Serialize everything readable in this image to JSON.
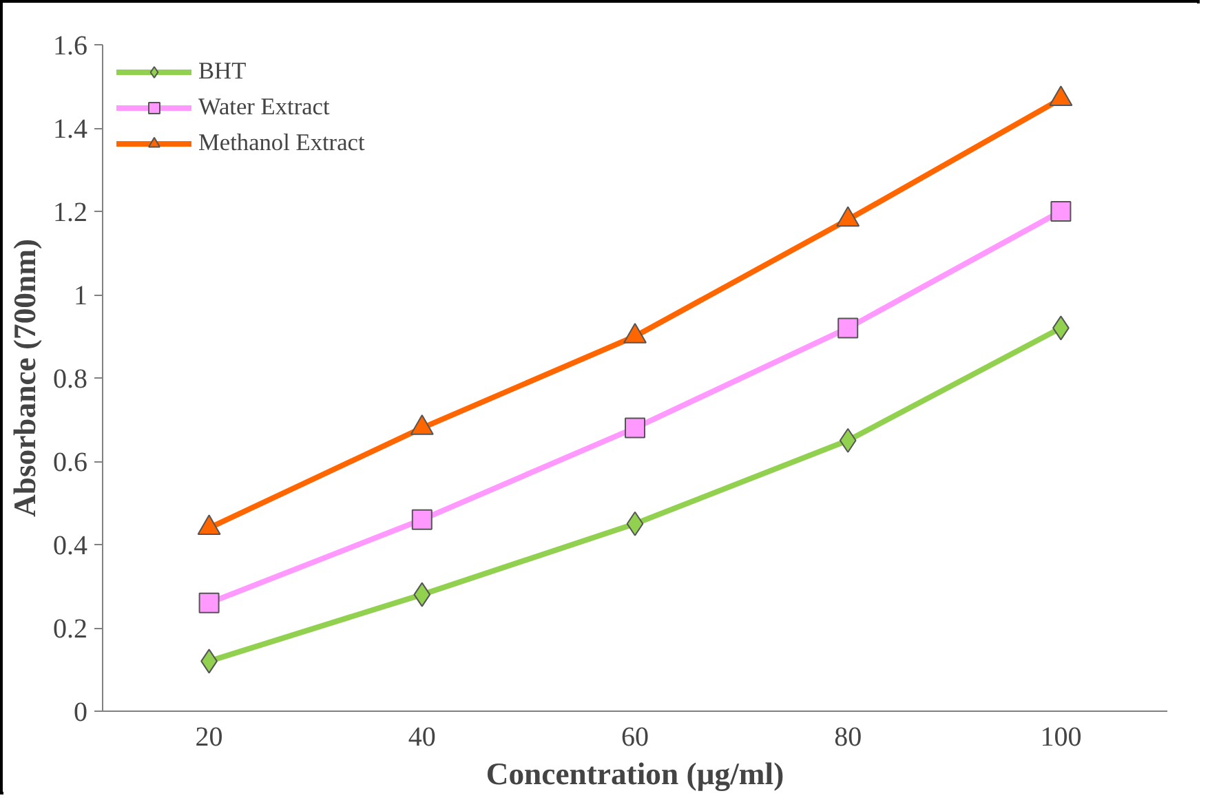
{
  "chart_data": {
    "type": "line",
    "xlabel": "Concentration (µg/ml)",
    "ylabel": "Absorbance (700nm)",
    "categories": [
      "20",
      "40",
      "60",
      "80",
      "100"
    ],
    "series": [
      {
        "name": "BHT",
        "color": "#92d050",
        "marker": "diamond",
        "values": [
          0.12,
          0.28,
          0.45,
          0.65,
          0.92
        ]
      },
      {
        "name": "Water Extract",
        "color": "#ff99ff",
        "marker": "square",
        "values": [
          0.26,
          0.46,
          0.68,
          0.92,
          1.2
        ]
      },
      {
        "name": "Methanol Extract",
        "color": "#ff6600",
        "marker": "triangle",
        "values": [
          0.44,
          0.68,
          0.9,
          1.18,
          1.47
        ]
      }
    ],
    "ylim": [
      0,
      1.6
    ],
    "yticks": [
      0,
      0.2,
      0.4,
      0.6,
      0.8,
      {
        "value": 1,
        "label": "1"
      },
      1.2,
      1.4,
      1.6
    ],
    "grid": false,
    "legend": "top left",
    "line_style": "solid"
  }
}
